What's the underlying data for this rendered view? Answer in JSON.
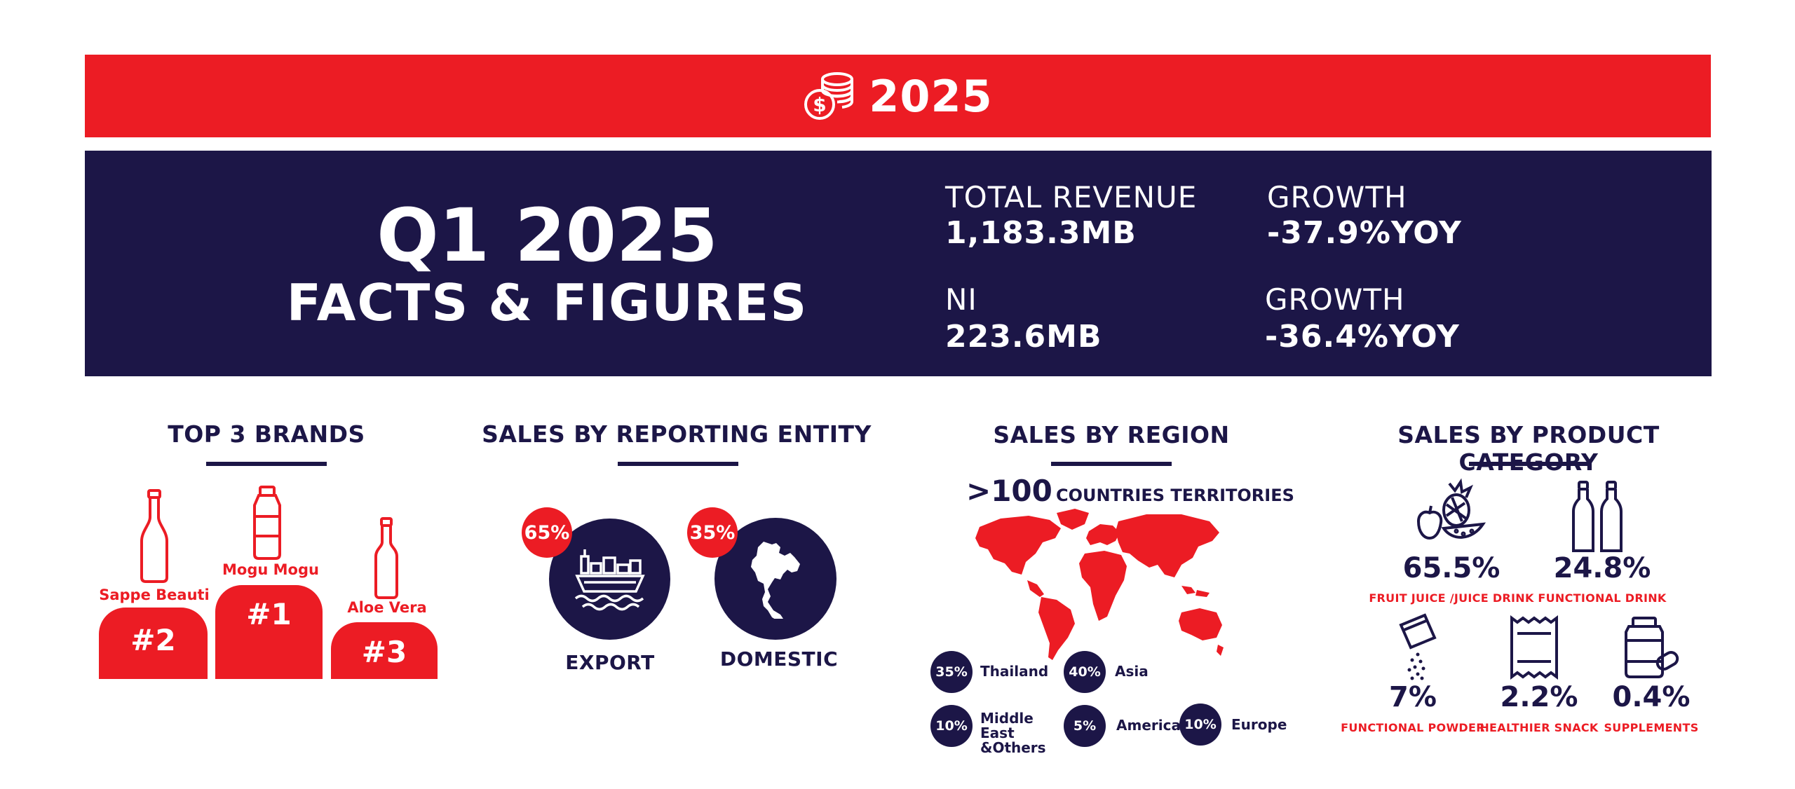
{
  "banner": {
    "year": "2025",
    "icon": "coins-dollar-icon",
    "color": "#ec1c24"
  },
  "hero": {
    "quarter": "Q1 2025",
    "subtitle": "FACTS & FIGURES",
    "stats": [
      {
        "label": "TOTAL REVENUE",
        "value": "1,183.3MB"
      },
      {
        "label": "GROWTH",
        "value": "-37.9%YOY"
      },
      {
        "label": "NI",
        "value": "223.6MB"
      },
      {
        "label": "GROWTH",
        "value": "-36.4%YOY"
      }
    ],
    "color": "#1c1647"
  },
  "brands": {
    "title": "TOP 3 BRANDS",
    "items": [
      {
        "name": "Sappe Beauti",
        "rank": "#2"
      },
      {
        "name": "Mogu Mogu",
        "rank": "#1"
      },
      {
        "name": "Aloe Vera",
        "rank": "#3"
      }
    ]
  },
  "entity": {
    "title": "SALES BY REPORTING ENTITY",
    "items": [
      {
        "label": "EXPORT",
        "pct": "65%",
        "icon": "cargo-ship-icon"
      },
      {
        "label": "DOMESTIC",
        "pct": "35%",
        "icon": "thailand-map-icon"
      }
    ]
  },
  "region": {
    "title": "SALES BY REGION",
    "countries_count": ">100",
    "countries_label": "COUNTRIES TERRITORIES",
    "items": [
      {
        "pct": "35%",
        "name": "Thailand"
      },
      {
        "pct": "40%",
        "name": "Asia"
      },
      {
        "pct": "10%",
        "name": "Middle East &Others"
      },
      {
        "pct": "5%",
        "name": "America"
      },
      {
        "pct": "10%",
        "name": "Europe"
      }
    ]
  },
  "category": {
    "title": "SALES BY PRODUCT CATEGORY",
    "items": [
      {
        "value": "65.5%",
        "name": "FRUIT JUICE /JUICE DRINK",
        "icon": "fruit-icon"
      },
      {
        "value": "24.8%",
        "name": "FUNCTIONAL DRINK",
        "icon": "bottles-icon"
      },
      {
        "value": "7%",
        "name": "FUNCTIONAL POWDER",
        "icon": "powder-sachet-icon"
      },
      {
        "value": "2.2%",
        "name": "HEALTHIER SNACK",
        "icon": "snack-pack-icon"
      },
      {
        "value": "0.4%",
        "name": "SUPPLEMENTS",
        "icon": "supplement-jar-icon"
      }
    ]
  }
}
